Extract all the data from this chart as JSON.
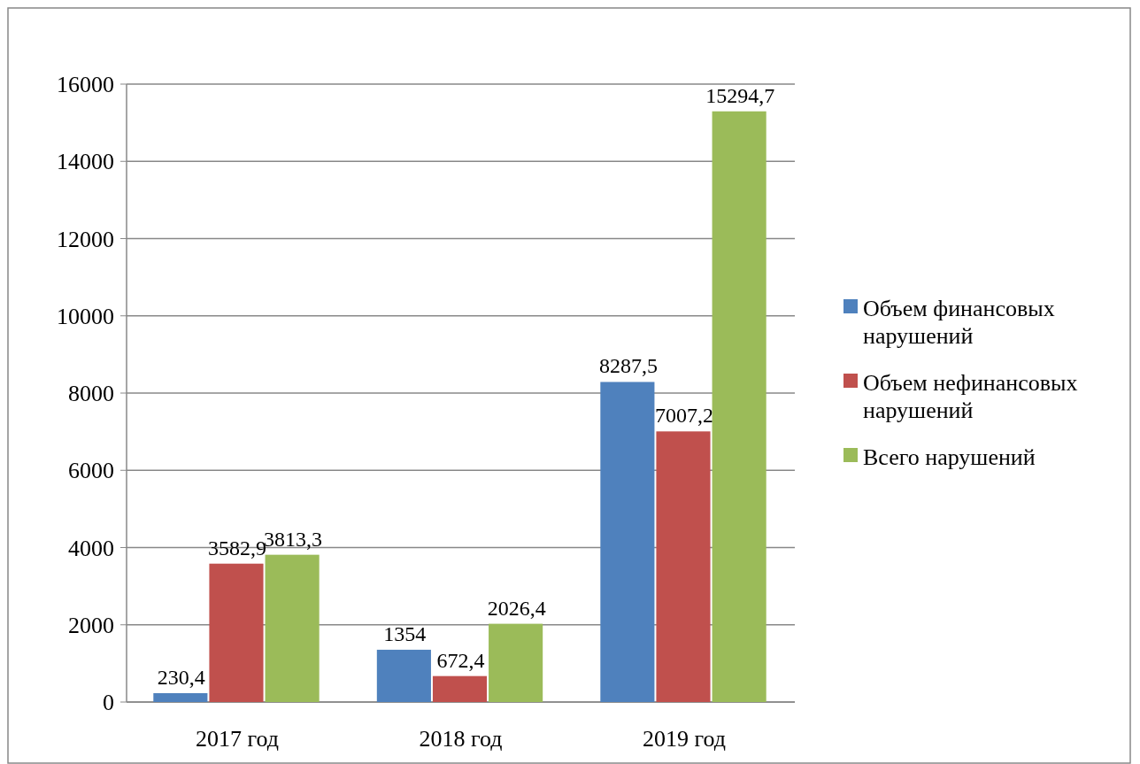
{
  "chart_data": {
    "type": "bar",
    "categories": [
      "2017 год",
      "2018 год",
      "2019 год"
    ],
    "series": [
      {
        "name": "Объем финансовых нарушений",
        "color": "#4f81bd",
        "values": [
          230.4,
          1354,
          8287.5
        ],
        "value_labels": [
          "230,4",
          "1354",
          "8287,5"
        ]
      },
      {
        "name": "Объем нефинансовых нарушений",
        "color": "#c0504d",
        "values": [
          3582.9,
          672.4,
          7007.2
        ],
        "value_labels": [
          "3582,9",
          "672,4",
          "7007,2"
        ]
      },
      {
        "name": "Всего нарушений",
        "color": "#9bbb59",
        "values": [
          3813.3,
          2026.4,
          15294.7
        ],
        "value_labels": [
          "3813,3",
          "2026,4",
          "15294,7"
        ]
      }
    ],
    "ylim": [
      0,
      16000
    ],
    "yticks": [
      0,
      2000,
      4000,
      6000,
      8000,
      10000,
      12000,
      14000,
      16000
    ],
    "grid": "y",
    "legend": "right"
  }
}
